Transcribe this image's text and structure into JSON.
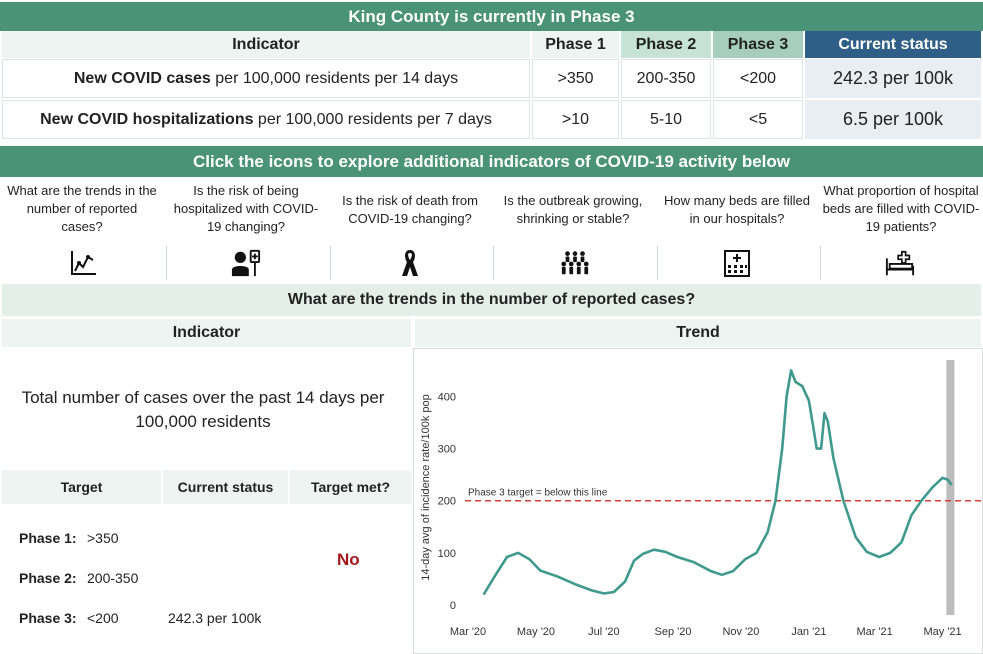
{
  "banner_title": "King County is currently in Phase 3",
  "table": {
    "headers": {
      "indicator": "Indicator",
      "phase1": "Phase 1",
      "phase2": "Phase 2",
      "phase3": "Phase 3",
      "status": "Current status"
    },
    "rows": [
      {
        "label_bold": "New COVID cases",
        "label_rest": " per 100,000 residents per 14 days",
        "phase1": ">350",
        "phase2": "200-350",
        "phase3": "<200",
        "status": "242.3 per 100k"
      },
      {
        "label_bold": "New COVID hospitalizations",
        "label_rest": " per 100,000 residents per 7 days",
        "phase1": ">10",
        "phase2": "5-10",
        "phase3": "<5",
        "status": "6.5 per 100k"
      }
    ]
  },
  "explore_banner": "Click the icons to explore additional indicators of COVID-19 activity below",
  "tiles": [
    {
      "question": "What are the trends in the number of reported cases?",
      "icon": "trend-chart-icon"
    },
    {
      "question": "Is the risk of being hospitalized with COVID-19 changing?",
      "icon": "patient-iv-icon"
    },
    {
      "question": "Is the risk of death from COVID-19 changing?",
      "icon": "ribbon-icon"
    },
    {
      "question": "Is the outbreak growing, shrinking or stable?",
      "icon": "people-group-icon"
    },
    {
      "question": "How many beds are filled in our hospitals?",
      "icon": "hospital-building-icon"
    },
    {
      "question": "What proportion of hospital beds are filled with COVID-19 patients?",
      "icon": "hospital-bed-icon"
    }
  ],
  "section_title": "What are the trends in the number of reported cases?",
  "left_panel": {
    "header": "Indicator",
    "description": "Total number of cases over the past 14 days per 100,000 residents",
    "target_headers": {
      "target": "Target",
      "status": "Current status",
      "met": "Target met?"
    },
    "phases": [
      {
        "label": "Phase 1:",
        "value": ">350"
      },
      {
        "label": "Phase 2:",
        "value": "200-350"
      },
      {
        "label": "Phase 3:",
        "value": "<200"
      }
    ],
    "current_status": "242.3 per 100k",
    "target_met": "No",
    "colors": {
      "no": "#a3171b"
    }
  },
  "right_panel": {
    "header": "Trend"
  },
  "chart_data": {
    "type": "line",
    "title": "",
    "xlabel": "",
    "ylabel": "14-day avg of incidence rate/100k pop",
    "x_ticks": [
      "Mar '20",
      "May '20",
      "Jul '20",
      "Sep '20",
      "Nov '20",
      "Jan '21",
      "Mar '21",
      "May '21"
    ],
    "y_ticks": [
      0,
      100,
      200,
      300,
      400
    ],
    "ylim": [
      0,
      470
    ],
    "series": [
      {
        "color": "#3f9a8d",
        "points": [
          {
            "x": "2020-03-15",
            "y": 20
          },
          {
            "x": "2020-03-25",
            "y": 55
          },
          {
            "x": "2020-04-05",
            "y": 92
          },
          {
            "x": "2020-04-15",
            "y": 100
          },
          {
            "x": "2020-04-25",
            "y": 88
          },
          {
            "x": "2020-05-05",
            "y": 66
          },
          {
            "x": "2020-05-20",
            "y": 55
          },
          {
            "x": "2020-06-05",
            "y": 40
          },
          {
            "x": "2020-06-20",
            "y": 28
          },
          {
            "x": "2020-07-01",
            "y": 22
          },
          {
            "x": "2020-07-10",
            "y": 25
          },
          {
            "x": "2020-07-20",
            "y": 45
          },
          {
            "x": "2020-07-28",
            "y": 85
          },
          {
            "x": "2020-08-05",
            "y": 98
          },
          {
            "x": "2020-08-15",
            "y": 106
          },
          {
            "x": "2020-08-25",
            "y": 102
          },
          {
            "x": "2020-09-05",
            "y": 92
          },
          {
            "x": "2020-09-20",
            "y": 82
          },
          {
            "x": "2020-10-05",
            "y": 65
          },
          {
            "x": "2020-10-15",
            "y": 58
          },
          {
            "x": "2020-10-25",
            "y": 65
          },
          {
            "x": "2020-11-05",
            "y": 88
          },
          {
            "x": "2020-11-15",
            "y": 100
          },
          {
            "x": "2020-11-25",
            "y": 140
          },
          {
            "x": "2020-12-02",
            "y": 200
          },
          {
            "x": "2020-12-08",
            "y": 300
          },
          {
            "x": "2020-12-12",
            "y": 400
          },
          {
            "x": "2020-12-16",
            "y": 450
          },
          {
            "x": "2020-12-20",
            "y": 428
          },
          {
            "x": "2020-12-26",
            "y": 420
          },
          {
            "x": "2021-01-01",
            "y": 392
          },
          {
            "x": "2021-01-05",
            "y": 340
          },
          {
            "x": "2021-01-08",
            "y": 300
          },
          {
            "x": "2021-01-12",
            "y": 300
          },
          {
            "x": "2021-01-15",
            "y": 368
          },
          {
            "x": "2021-01-18",
            "y": 352
          },
          {
            "x": "2021-01-23",
            "y": 282
          },
          {
            "x": "2021-02-01",
            "y": 200
          },
          {
            "x": "2021-02-12",
            "y": 130
          },
          {
            "x": "2021-02-22",
            "y": 102
          },
          {
            "x": "2021-03-05",
            "y": 92
          },
          {
            "x": "2021-03-15",
            "y": 100
          },
          {
            "x": "2021-03-25",
            "y": 120
          },
          {
            "x": "2021-04-03",
            "y": 172
          },
          {
            "x": "2021-04-12",
            "y": 200
          },
          {
            "x": "2021-04-22",
            "y": 226
          },
          {
            "x": "2021-05-01",
            "y": 244
          },
          {
            "x": "2021-05-06",
            "y": 240
          },
          {
            "x": "2021-05-09",
            "y": 230
          }
        ]
      }
    ],
    "reference_line": {
      "y": 200,
      "label": "Phase 3 target = below this line",
      "color": "#d9403a"
    },
    "highlight_band": {
      "x": "2021-05-08",
      "color": "#bdbdbd"
    }
  }
}
